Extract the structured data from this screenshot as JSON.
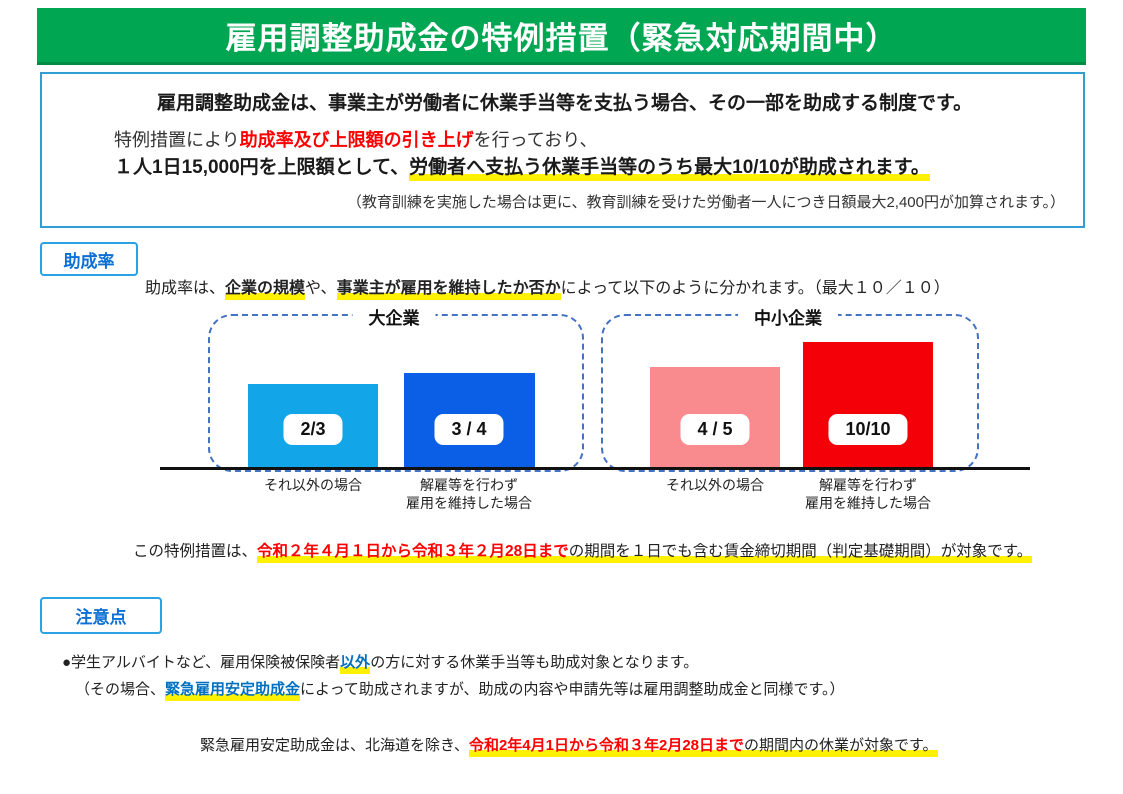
{
  "colors": {
    "green": "#00A652",
    "boxborder": "#2E9FD0",
    "badgeborder": "#29A3E3",
    "badgetext": "#0B6FD6",
    "dash": "#4472C4",
    "yellow": "#FFF100",
    "red": "#FF0000",
    "bluetext": "#0070C0"
  },
  "header": {
    "title": "雇用調整助成金の特例措置（緊急対応期間中）"
  },
  "intro": {
    "line1": "雇用調整助成金は、事業主が労働者に休業手当等を支払う場合、その一部を助成する制度です。",
    "line2": [
      {
        "t": "特例措置により"
      },
      {
        "t": "助成率及び上限額の引き上げ",
        "c": "red"
      },
      {
        "t": "を行っており、"
      }
    ],
    "line3": [
      {
        "t": "１人1日15,000円を上限額として、",
        "c": "b"
      },
      {
        "t": "労働者へ支払う休業手当等のうち最大10/10が助成されます。",
        "c": "b yhl"
      }
    ],
    "line4": "（教育訓練を実施した場合は更に、教育訓練を受けた労働者一人につき日額最大2,400円が加算されます。）"
  },
  "josei": {
    "label": "助成率",
    "desc": [
      {
        "t": "助成率は、"
      },
      {
        "t": "企業の規模",
        "c": "b yhl"
      },
      {
        "t": "や、"
      },
      {
        "t": "事業主が雇用を維持したか否か",
        "c": "b yhl"
      },
      {
        "t": "によって以下のように分かれます。（最大１０／１０）"
      }
    ]
  },
  "chart_data": {
    "type": "bar",
    "title": "助成率（企業規模・雇用維持の有無別）",
    "ylim": [
      0,
      1
    ],
    "max_label": "最大１０／１０",
    "groups": [
      {
        "label": "大企業",
        "bars": [
          {
            "label": "2/3",
            "value": 0.667,
            "color": "#12A5E8",
            "caption": "それ以外の場合"
          },
          {
            "label": "3 / 4",
            "value": 0.75,
            "color": "#0B5FE6",
            "caption": "解雇等を行わず\n雇用を維持した場合"
          }
        ]
      },
      {
        "label": "中小企業",
        "bars": [
          {
            "label": "4 / 5",
            "value": 0.8,
            "color": "#F98A8E",
            "caption": "それ以外の場合"
          },
          {
            "label": "10/10",
            "value": 1.0,
            "color": "#F40008",
            "caption": "解雇等を行わず\n雇用を維持した場合"
          }
        ]
      }
    ]
  },
  "period": [
    {
      "t": "この特例措置は、"
    },
    {
      "t": "令和２年４月１日から令和３年２月28日まで",
      "c": "red yhl"
    },
    {
      "t": "の期間を１日でも含む賃金締切期間（判定基礎期間）が対象です。",
      "c": "yhl"
    }
  ],
  "caution": {
    "label": "注意点",
    "bullet1": [
      {
        "t": "●学生アルバイトなど、雇用保険被保険者"
      },
      {
        "t": "以外",
        "c": "blue yhl"
      },
      {
        "t": "の方に対する休業手当等も助成対象となります。"
      }
    ],
    "bullet2": [
      {
        "t": "（その場合、"
      },
      {
        "t": "緊急雇用安定助成金",
        "c": "blue yhl"
      },
      {
        "t": "によって助成されますが、助成の内容や申請先等は雇用調整助成金と同様です。）"
      }
    ],
    "footnote": [
      {
        "t": "緊急雇用安定助成金は、北海道を除き、"
      },
      {
        "t": "令和2年4月1日から令和３年2月28日まで",
        "c": "red yhl"
      },
      {
        "t": "の期間内の休業が対象です。",
        "c": "yhl"
      }
    ]
  }
}
